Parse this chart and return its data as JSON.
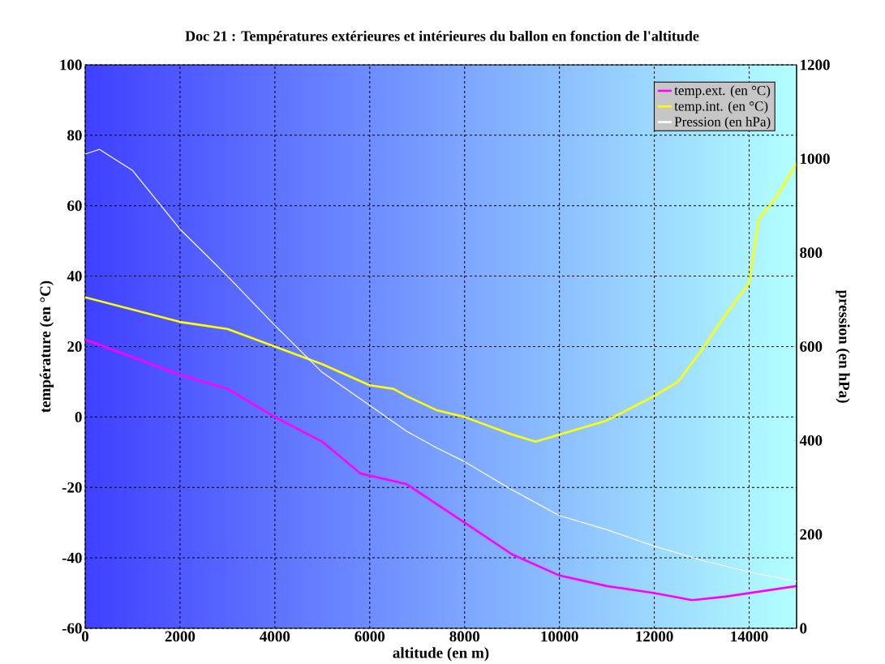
{
  "chart_data": {
    "type": "line",
    "title": "Doc 21 : Températures extérieures et intérieures du ballon en fonction de l'altitude",
    "xlabel": "altitude (en m)",
    "ylabel": "température (en °C)",
    "y2label": "pression (en hPa)",
    "xlim": [
      0,
      15000
    ],
    "xticks": [
      0,
      2000,
      4000,
      6000,
      8000,
      10000,
      12000,
      14000
    ],
    "ylim": [
      -60,
      100
    ],
    "yticks": [
      -60,
      -40,
      -20,
      0,
      20,
      40,
      60,
      80,
      100
    ],
    "y2lim": [
      0,
      1200
    ],
    "y2ticks": [
      0,
      200,
      400,
      600,
      800,
      1000,
      1200
    ],
    "grid": true,
    "legend": "top right",
    "line_style": "solid",
    "marker": "none",
    "series": [
      {
        "name": "temp.ext. (en °C)",
        "color": "#ff00ff",
        "x": [
          0,
          2000,
          3000,
          4000,
          5000,
          5800,
          6771,
          8000,
          9000,
          10000,
          11000,
          12000,
          12800,
          13500,
          14000,
          15000
        ],
        "values": [
          22,
          12,
          8,
          0,
          -7,
          -16,
          -19,
          -30,
          -39,
          -45,
          -48,
          -50,
          -52,
          -51,
          -50,
          -48
        ]
      },
      {
        "name": "temp.int. (en °C)",
        "color": "#ffff00",
        "x": [
          0,
          2000,
          3000,
          4000,
          5000,
          6000,
          6500,
          6771,
          7400,
          8000,
          9000,
          9500,
          10000,
          11000,
          12000,
          12500,
          13000,
          13500,
          14000,
          14200,
          14600,
          15000
        ],
        "values": [
          34,
          27,
          25,
          20,
          15,
          9,
          8,
          6,
          2,
          0,
          -5,
          -7,
          -5,
          -1,
          6,
          10,
          19,
          29,
          38,
          56,
          63,
          72
        ]
      },
      {
        "name": "Pression (en hPa)",
        "color": "#ffffff",
        "axis": "y2",
        "x": [
          0,
          300,
          1000,
          2000,
          3000,
          4000,
          5000,
          6000,
          6771,
          7400,
          8000,
          9000,
          10000,
          11000,
          12000,
          13000,
          14000,
          15000
        ],
        "values": [
          1010,
          1020,
          975,
          850,
          750,
          645,
          545,
          475,
          420,
          385,
          355,
          295,
          240,
          210,
          175,
          145,
          120,
          100
        ]
      }
    ]
  }
}
